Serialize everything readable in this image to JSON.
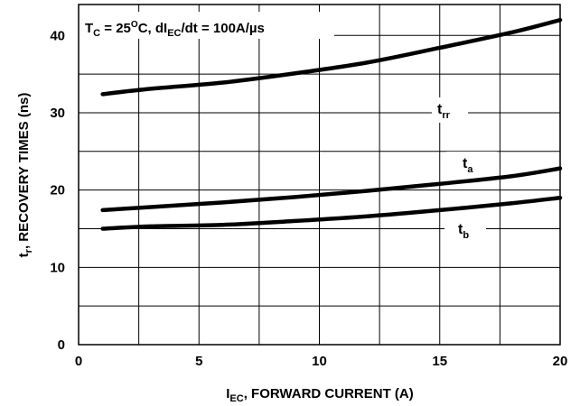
{
  "chart_data": {
    "type": "line",
    "x_ticks": [
      0,
      5,
      10,
      15,
      20
    ],
    "y_ticks": [
      0,
      10,
      20,
      30,
      40
    ],
    "xlim": [
      0,
      20
    ],
    "ylim": [
      0,
      44
    ],
    "grid": true,
    "x_gridlines": [
      0,
      2.5,
      5,
      7.5,
      10,
      12.5,
      15,
      17.5,
      20
    ],
    "y_gridlines": [
      5,
      10,
      15,
      20,
      25,
      30,
      35,
      40
    ],
    "xlabel": {
      "main": "I",
      "sub": "EC",
      "rest": ", FORWARD CURRENT (A)"
    },
    "ylabel": {
      "main": "t",
      "sub": "r",
      "rest": ", RECOVERY TIMES (ns)"
    },
    "annotation": {
      "t": "T",
      "t_sub": "C",
      "eq1": " = 25",
      "deg_sup": "O",
      "unit": "C, dI",
      "di_sub": "EC",
      "rest": "/dt = 100A/µs"
    },
    "series": [
      {
        "label_main": "t",
        "label_sub": "rr",
        "x": [
          1,
          3,
          6,
          9,
          12,
          15,
          18,
          20
        ],
        "y": [
          32.4,
          33.1,
          33.9,
          35.1,
          36.5,
          38.4,
          40.4,
          42.0
        ]
      },
      {
        "label_main": "t",
        "label_sub": "a",
        "x": [
          1,
          3,
          6,
          9,
          12,
          15,
          18,
          20
        ],
        "y": [
          17.4,
          17.8,
          18.4,
          19.1,
          19.9,
          20.8,
          21.8,
          22.8
        ]
      },
      {
        "label_main": "t",
        "label_sub": "b",
        "x": [
          1,
          3,
          6,
          9,
          12,
          15,
          18,
          20
        ],
        "y": [
          15.0,
          15.3,
          15.5,
          16.0,
          16.6,
          17.4,
          18.3,
          19.0
        ]
      }
    ]
  }
}
